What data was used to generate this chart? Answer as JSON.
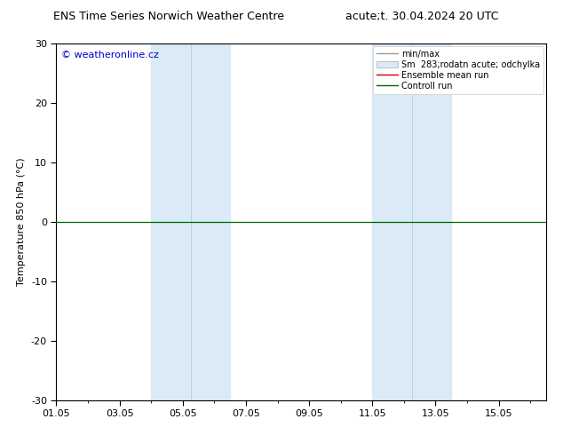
{
  "title_left": "ENS Time Series Norwich Weather Centre",
  "title_right": "acute;t. 30.04.2024 20 UTC",
  "ylabel": "Temperature 850 hPa (°C)",
  "ylim": [
    -30,
    30
  ],
  "yticks": [
    -30,
    -20,
    -10,
    0,
    10,
    20,
    30
  ],
  "xlim_start": 0.0,
  "xlim_end": 15.5,
  "xtick_labels": [
    "01.05",
    "03.05",
    "05.05",
    "07.05",
    "09.05",
    "11.05",
    "13.05",
    "15.05"
  ],
  "xtick_positions": [
    0,
    2,
    4,
    6,
    8,
    10,
    12,
    14
  ],
  "shade_bands": [
    {
      "xmin": 3.0,
      "xmax": 5.5
    },
    {
      "xmin": 10.0,
      "xmax": 12.5
    }
  ],
  "shade_color": "#daeaf7",
  "inner_line_color": "#b8d0e8",
  "control_run_y": 0,
  "control_run_color": "#006600",
  "ensemble_mean_color": "#cc0000",
  "watermark": "© weatheronline.cz",
  "watermark_color": "#0000cc",
  "legend_label_minmax": "min/max",
  "legend_label_std": "Sm  283;rodatn acute; odchylka",
  "legend_label_ens": "Ensemble mean run",
  "legend_label_ctrl": "Controll run",
  "bg_color": "#ffffff",
  "plot_bg_color": "#ffffff",
  "spine_color": "#000000",
  "tick_color": "#000000",
  "title_fontsize": 9,
  "axis_fontsize": 8,
  "legend_fontsize": 7
}
